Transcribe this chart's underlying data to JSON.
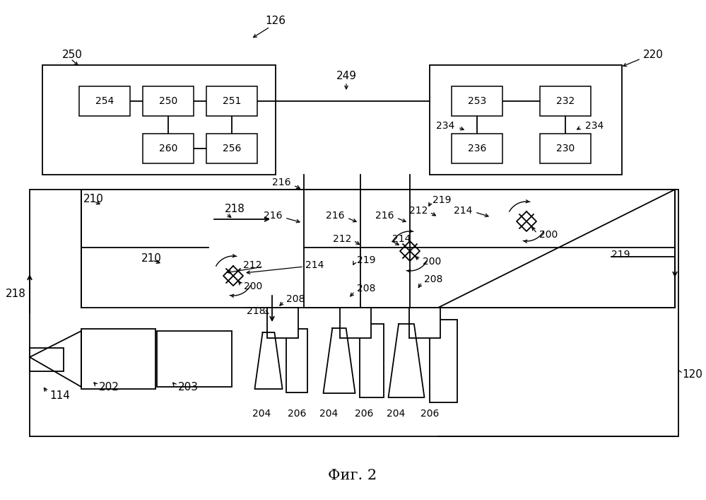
{
  "bg_color": "#ffffff",
  "fig_label": "Фиг. 2",
  "label_fontsize": 15
}
